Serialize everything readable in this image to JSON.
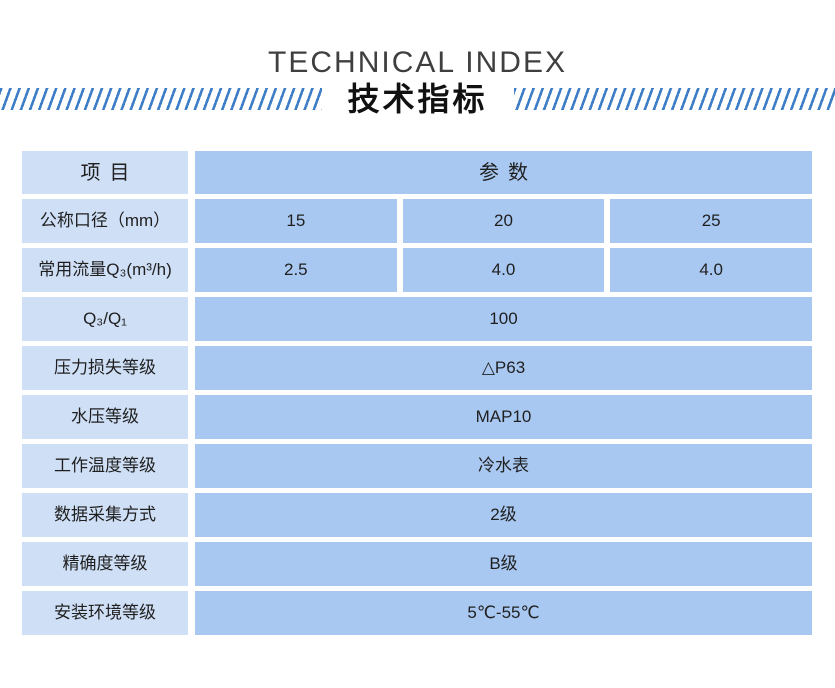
{
  "header": {
    "title_en": "TECHNICAL INDEX",
    "title_zh": "技术指标"
  },
  "table": {
    "item_header": "项目",
    "param_header": "参数",
    "rows": [
      {
        "label": "公称口径（mm）",
        "values": [
          "15",
          "20",
          "25"
        ]
      },
      {
        "label": "常用流量Q₃(m³/h)",
        "values": [
          "2.5",
          "4.0",
          "4.0"
        ]
      },
      {
        "label": "Q₃/Q₁",
        "value": "100"
      },
      {
        "label": "压力损失等级",
        "value": "△P63"
      },
      {
        "label": "水压等级",
        "value": "MAP10"
      },
      {
        "label": "工作温度等级",
        "value": "冷水表"
      },
      {
        "label": "数据采集方式",
        "value": "2级"
      },
      {
        "label": "精确度等级",
        "value": "B级"
      },
      {
        "label": "安装环境等级",
        "value": "5℃-55℃"
      }
    ]
  },
  "colors": {
    "label_cell_bg": "#cfdff6",
    "value_cell_bg": "#a9c8f1",
    "stripe_blue": "#3d7ec6",
    "title_dark": "#3f3f3f",
    "text_dark": "#1f1f1f"
  }
}
